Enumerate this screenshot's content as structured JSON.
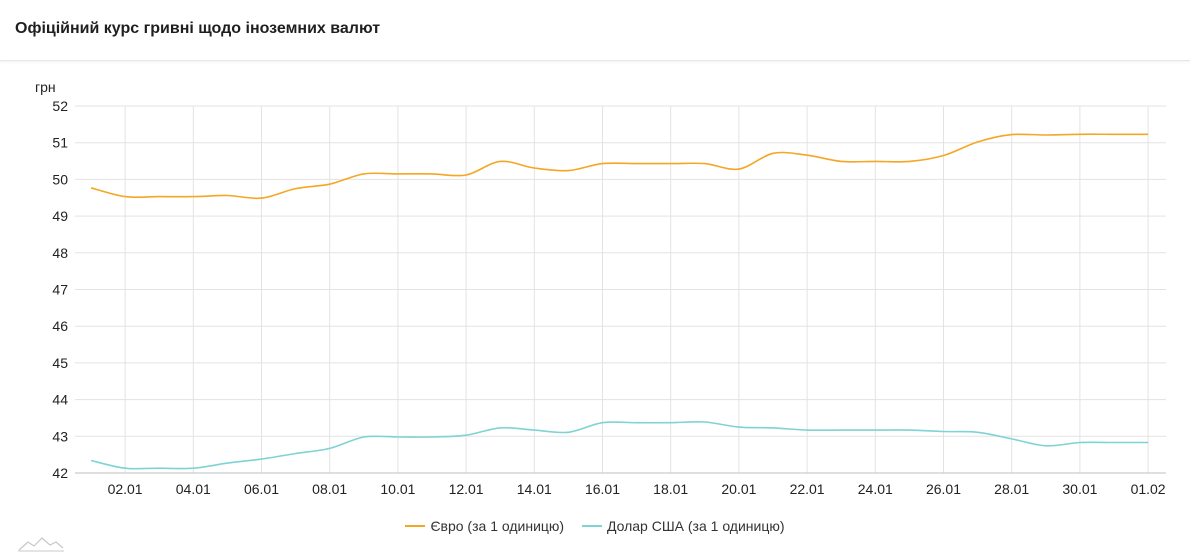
{
  "header": {
    "title": "Офіційний курс гривні щодо іноземних валют"
  },
  "colors": {
    "euro": "#f5a623",
    "usd": "#7fd3d3",
    "grid": "#e3e3e3",
    "axis": "#bfbfbf"
  },
  "chart_data": {
    "type": "line",
    "ylabel": "грн",
    "ylim": [
      42,
      52
    ],
    "yticks": [
      "42",
      "43",
      "44",
      "45",
      "46",
      "47",
      "48",
      "49",
      "50",
      "51",
      "52"
    ],
    "xticks": [
      "02.01",
      "04.01",
      "06.01",
      "08.01",
      "10.01",
      "12.01",
      "14.01",
      "16.01",
      "18.01",
      "20.01",
      "22.01",
      "24.01",
      "26.01",
      "28.01",
      "30.01",
      "01.02"
    ],
    "grid": true,
    "legend_position": "bottom",
    "x": [
      "01.01",
      "02.01",
      "03.01",
      "04.01",
      "05.01",
      "06.01",
      "07.01",
      "08.01",
      "09.01",
      "10.01",
      "11.01",
      "12.01",
      "13.01",
      "14.01",
      "15.01",
      "16.01",
      "17.01",
      "18.01",
      "19.01",
      "20.01",
      "21.01",
      "22.01",
      "23.01",
      "24.01",
      "25.01",
      "26.01",
      "27.01",
      "28.01",
      "29.01",
      "30.01",
      "31.01",
      "01.02"
    ],
    "series": [
      {
        "name": "Євро (за 1 одиницю)",
        "values": [
          49.77,
          49.53,
          49.53,
          49.53,
          49.56,
          49.49,
          49.75,
          49.87,
          50.15,
          50.15,
          50.15,
          50.12,
          50.49,
          50.31,
          50.24,
          50.43,
          50.43,
          50.43,
          50.43,
          50.28,
          50.71,
          50.66,
          50.49,
          50.49,
          50.49,
          50.65,
          51.02,
          51.22,
          51.21,
          51.23,
          51.23,
          51.23
        ]
      },
      {
        "name": "Долар США (за 1 одиницю)",
        "values": [
          42.34,
          42.13,
          42.13,
          42.13,
          42.27,
          42.38,
          42.53,
          42.67,
          42.98,
          42.98,
          42.98,
          43.03,
          43.23,
          43.17,
          43.11,
          43.37,
          43.37,
          43.37,
          43.39,
          43.25,
          43.23,
          43.17,
          43.17,
          43.17,
          43.17,
          43.13,
          43.11,
          42.93,
          42.74,
          42.83,
          42.83,
          42.83
        ]
      }
    ]
  }
}
